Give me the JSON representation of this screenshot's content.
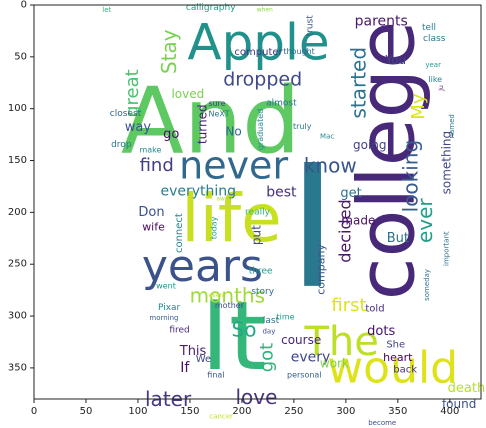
{
  "chart_data": {
    "type": "wordcloud",
    "xlim": [
      0,
      430
    ],
    "ylim": [
      380,
      0
    ],
    "x_ticks": [
      0,
      50,
      100,
      150,
      200,
      250,
      300,
      350,
      400
    ],
    "y_ticks": [
      0,
      50,
      100,
      150,
      200,
      250,
      300,
      350
    ],
    "colormap": "viridis",
    "words": [
      {
        "text": "And",
        "x": 170,
        "y": 112,
        "size": 92,
        "color": "#5ec962",
        "rot": 0
      },
      {
        "text": "I",
        "x": 268,
        "y": 215,
        "size": 170,
        "color": "#2a788e",
        "rot": 0
      },
      {
        "text": "It",
        "x": 192,
        "y": 320,
        "size": 95,
        "color": "#35b779",
        "rot": 0
      },
      {
        "text": "college",
        "x": 340,
        "y": 150,
        "size": 78,
        "color": "#482878",
        "rot": -90
      },
      {
        "text": "Apple",
        "x": 216,
        "y": 36,
        "size": 50,
        "color": "#21918c",
        "rot": 0
      },
      {
        "text": "life",
        "x": 190,
        "y": 206,
        "size": 66,
        "color": "#c8e020",
        "rot": 0
      },
      {
        "text": "never",
        "x": 192,
        "y": 155,
        "size": 38,
        "color": "#31688e",
        "rot": 0
      },
      {
        "text": "years",
        "x": 162,
        "y": 252,
        "size": 44,
        "color": "#3b528b",
        "rot": 0
      },
      {
        "text": "would",
        "x": 345,
        "y": 350,
        "size": 44,
        "color": "#dde318",
        "rot": 0
      },
      {
        "text": "The",
        "x": 296,
        "y": 325,
        "size": 40,
        "color": "#bddf26",
        "rot": 0
      },
      {
        "text": "dropped",
        "x": 220,
        "y": 72,
        "size": 19,
        "color": "#3e4989",
        "rot": 0
      },
      {
        "text": "months",
        "x": 186,
        "y": 280,
        "size": 20,
        "color": "#a0da39",
        "rot": 0
      },
      {
        "text": "later",
        "x": 129,
        "y": 380,
        "size": 20,
        "color": "#443983",
        "rot": 0
      },
      {
        "text": "love",
        "x": 214,
        "y": 378,
        "size": 20,
        "color": "#46337e",
        "rot": 0
      },
      {
        "text": "know",
        "x": 285,
        "y": 155,
        "size": 20,
        "color": "#39568c",
        "rot": 0
      },
      {
        "text": "find",
        "x": 118,
        "y": 155,
        "size": 18,
        "color": "#433e85",
        "rot": 0
      },
      {
        "text": "Stay",
        "x": 130,
        "y": 45,
        "size": 20,
        "color": "#7ad151",
        "rot": -90
      },
      {
        "text": "great",
        "x": 95,
        "y": 85,
        "size": 18,
        "color": "#4ac16d",
        "rot": -90
      },
      {
        "text": "started",
        "x": 312,
        "y": 75,
        "size": 20,
        "color": "#2c728e",
        "rot": -90
      },
      {
        "text": "My",
        "x": 370,
        "y": 98,
        "size": 18,
        "color": "#dde318",
        "rot": -90
      },
      {
        "text": "looking",
        "x": 362,
        "y": 165,
        "size": 20,
        "color": "#365c8d",
        "rot": -90
      },
      {
        "text": "ever",
        "x": 376,
        "y": 208,
        "size": 20,
        "color": "#1fa088",
        "rot": -90
      },
      {
        "text": "something",
        "x": 397,
        "y": 152,
        "size": 12,
        "color": "#3f4788",
        "rot": -90
      },
      {
        "text": "decided",
        "x": 299,
        "y": 218,
        "size": 16,
        "color": "#48186a",
        "rot": -90
      },
      {
        "text": "first",
        "x": 303,
        "y": 290,
        "size": 18,
        "color": "#dde318",
        "rot": 0
      },
      {
        "text": "So",
        "x": 202,
        "y": 313,
        "size": 20,
        "color": "#22a884",
        "rot": 0
      },
      {
        "text": "got",
        "x": 224,
        "y": 340,
        "size": 18,
        "color": "#2fb47c",
        "rot": -90
      },
      {
        "text": "every",
        "x": 266,
        "y": 340,
        "size": 14,
        "color": "#404688",
        "rot": 0
      },
      {
        "text": "course",
        "x": 257,
        "y": 323,
        "size": 12,
        "color": "#482576",
        "rot": 0
      },
      {
        "text": "work",
        "x": 289,
        "y": 346,
        "size": 12,
        "color": "#7fd34e",
        "rot": 0
      },
      {
        "text": "dots",
        "x": 334,
        "y": 315,
        "size": 13,
        "color": "#471164",
        "rot": 0
      },
      {
        "text": "heart",
        "x": 350,
        "y": 340,
        "size": 11,
        "color": "#440154",
        "rot": 0
      },
      {
        "text": "She",
        "x": 348,
        "y": 328,
        "size": 10,
        "color": "#414487",
        "rot": 0
      },
      {
        "text": "back",
        "x": 357,
        "y": 352,
        "size": 10,
        "color": "#46327e",
        "rot": 0
      },
      {
        "text": "death",
        "x": 416,
        "y": 370,
        "size": 13,
        "color": "#b5de2b",
        "rot": 0
      },
      {
        "text": "found",
        "x": 409,
        "y": 385,
        "size": 12,
        "color": "#3b528b",
        "rot": 0
      },
      {
        "text": "told",
        "x": 328,
        "y": 293,
        "size": 10,
        "color": "#472c7a",
        "rot": 0
      },
      {
        "text": "going",
        "x": 323,
        "y": 135,
        "size": 12,
        "color": "#424186",
        "rot": 0
      },
      {
        "text": "get",
        "x": 305,
        "y": 182,
        "size": 13,
        "color": "#2c728e",
        "rot": 0
      },
      {
        "text": "made",
        "x": 312,
        "y": 208,
        "size": 12,
        "color": "#470d60",
        "rot": 0
      },
      {
        "text": "But",
        "x": 350,
        "y": 225,
        "size": 13,
        "color": "#2d708e",
        "rot": 0
      },
      {
        "text": "company",
        "x": 276,
        "y": 255,
        "size": 11,
        "color": "#3a548c",
        "rot": -90
      },
      {
        "text": "loved",
        "x": 148,
        "y": 86,
        "size": 12,
        "color": "#7ad151",
        "rot": 0
      },
      {
        "text": "way",
        "x": 100,
        "y": 118,
        "size": 13,
        "color": "#3b528b",
        "rot": 0
      },
      {
        "text": "go",
        "x": 132,
        "y": 125,
        "size": 13,
        "color": "#471063",
        "rot": 0
      },
      {
        "text": "turned",
        "x": 162,
        "y": 115,
        "size": 12,
        "color": "#482172",
        "rot": -90
      },
      {
        "text": "No",
        "x": 192,
        "y": 122,
        "size": 12,
        "color": "#31688e",
        "rot": 0
      },
      {
        "text": "everything",
        "x": 158,
        "y": 180,
        "size": 14,
        "color": "#297b8e",
        "rot": 0
      },
      {
        "text": "best",
        "x": 238,
        "y": 181,
        "size": 14,
        "color": "#46307e",
        "rot": 0
      },
      {
        "text": "Don",
        "x": 113,
        "y": 200,
        "size": 13,
        "color": "#3b528b",
        "rot": 0
      },
      {
        "text": "wife",
        "x": 115,
        "y": 214,
        "size": 11,
        "color": "#460a5d",
        "rot": 0
      },
      {
        "text": "connect",
        "x": 140,
        "y": 220,
        "size": 10,
        "color": "#25838e",
        "rot": -90
      },
      {
        "text": "put",
        "x": 214,
        "y": 222,
        "size": 12,
        "color": "#3e4989",
        "rot": -90
      },
      {
        "text": "This",
        "x": 153,
        "y": 334,
        "size": 13,
        "color": "#481f70",
        "rot": 0
      },
      {
        "text": "If",
        "x": 145,
        "y": 350,
        "size": 14,
        "color": "#471365",
        "rot": 0
      },
      {
        "text": "parents",
        "x": 334,
        "y": 16,
        "size": 14,
        "color": "#481b6d",
        "rot": 0
      },
      {
        "text": "You",
        "x": 348,
        "y": 53,
        "size": 12,
        "color": "#414487",
        "rot": 0
      },
      {
        "text": "computer",
        "x": 216,
        "y": 46,
        "size": 10,
        "color": "#453781",
        "rot": 0
      },
      {
        "text": "tell",
        "x": 380,
        "y": 22,
        "size": 9,
        "color": "#287d8e",
        "rot": 0
      },
      {
        "text": "class",
        "x": 385,
        "y": 33,
        "size": 9,
        "color": "#297a8e",
        "rot": 0
      },
      {
        "text": "calligraphy",
        "x": 170,
        "y": 3,
        "size": 9,
        "color": "#1fa088",
        "rot": 0
      },
      {
        "text": "trust",
        "x": 266,
        "y": 20,
        "size": 9,
        "color": "#3b528b",
        "rot": -90
      },
      {
        "text": "thought",
        "x": 255,
        "y": 45,
        "size": 8,
        "color": "#31688e",
        "rot": 0
      },
      {
        "text": "almost",
        "x": 238,
        "y": 95,
        "size": 9,
        "color": "#2c728e",
        "rot": 0
      },
      {
        "text": "sure",
        "x": 176,
        "y": 95,
        "size": 8,
        "color": "#414487",
        "rot": 0
      },
      {
        "text": "closest",
        "x": 88,
        "y": 105,
        "size": 9,
        "color": "#32648e",
        "rot": 0
      },
      {
        "text": "drop",
        "x": 84,
        "y": 135,
        "size": 9,
        "color": "#29798e",
        "rot": 0
      },
      {
        "text": "make",
        "x": 112,
        "y": 140,
        "size": 8,
        "color": "#24878e",
        "rot": 0
      },
      {
        "text": "graduated",
        "x": 218,
        "y": 120,
        "size": 8,
        "color": "#23898e",
        "rot": -90
      },
      {
        "text": "truly",
        "x": 258,
        "y": 117,
        "size": 8,
        "color": "#2a768e",
        "rot": 0
      },
      {
        "text": "Mac",
        "x": 282,
        "y": 127,
        "size": 7,
        "color": "#238a8d",
        "rot": 0
      },
      {
        "text": "NeXT",
        "x": 178,
        "y": 105,
        "size": 8,
        "color": "#2a778e",
        "rot": 0
      },
      {
        "text": "named",
        "x": 402,
        "y": 117,
        "size": 7,
        "color": "#2a768e",
        "rot": -90
      },
      {
        "text": "like",
        "x": 386,
        "y": 72,
        "size": 8,
        "color": "#24868e",
        "rot": 0
      },
      {
        "text": "year",
        "x": 384,
        "y": 58,
        "size": 7,
        "color": "#1fa188",
        "rot": 0
      },
      {
        "text": "really",
        "x": 215,
        "y": 200,
        "size": 9,
        "color": "#2fb47c",
        "rot": 0
      },
      {
        "text": "today",
        "x": 173,
        "y": 215,
        "size": 8,
        "color": "#1fa188",
        "rot": -90
      },
      {
        "text": "three",
        "x": 218,
        "y": 257,
        "size": 9,
        "color": "#1f978b",
        "rot": 0
      },
      {
        "text": "story",
        "x": 220,
        "y": 277,
        "size": 9,
        "color": "#2d708e",
        "rot": 0
      },
      {
        "text": "mother",
        "x": 188,
        "y": 290,
        "size": 8,
        "color": "#3d4d8a",
        "rot": 0
      },
      {
        "text": "Pixar",
        "x": 130,
        "y": 292,
        "size": 9,
        "color": "#24868e",
        "rot": 0
      },
      {
        "text": "went",
        "x": 127,
        "y": 271,
        "size": 8,
        "color": "#21918c",
        "rot": 0
      },
      {
        "text": "morning",
        "x": 125,
        "y": 302,
        "size": 7,
        "color": "#375a8c",
        "rot": 0
      },
      {
        "text": "fired",
        "x": 140,
        "y": 314,
        "size": 9,
        "color": "#472a7a",
        "rot": 0
      },
      {
        "text": "last",
        "x": 228,
        "y": 305,
        "size": 9,
        "color": "#2c718e",
        "rot": 0
      },
      {
        "text": "day",
        "x": 226,
        "y": 315,
        "size": 7,
        "color": "#3e4c8a",
        "rot": 0
      },
      {
        "text": "time",
        "x": 242,
        "y": 301,
        "size": 8,
        "color": "#1e9b8a",
        "rot": 0
      },
      {
        "text": "We",
        "x": 163,
        "y": 342,
        "size": 10,
        "color": "#3f4889",
        "rot": 0
      },
      {
        "text": "final",
        "x": 175,
        "y": 357,
        "size": 8,
        "color": "#3a548c",
        "rot": 0
      },
      {
        "text": "personal",
        "x": 260,
        "y": 357,
        "size": 8,
        "color": "#32648e",
        "rot": 0
      },
      {
        "text": "cancer",
        "x": 180,
        "y": 397,
        "size": 7,
        "color": "#c8e020",
        "rot": 0
      },
      {
        "text": "become",
        "x": 335,
        "y": 403,
        "size": 7,
        "color": "#3d4e8a",
        "rot": 0
      },
      {
        "text": "someday",
        "x": 378,
        "y": 270,
        "size": 7,
        "color": "#2b758e",
        "rot": -90
      },
      {
        "text": "important",
        "x": 397,
        "y": 235,
        "size": 7,
        "color": "#2e6d8e",
        "rot": -90
      },
      {
        "text": "let",
        "x": 70,
        "y": 5,
        "size": 7,
        "color": "#2fb47c",
        "rot": 0
      },
      {
        "text": "when",
        "x": 222,
        "y": 5,
        "size": 6,
        "color": "#8fd744",
        "rot": 0
      },
      {
        "text": "away",
        "x": 183,
        "y": 187,
        "size": 6,
        "color": "#b5de2b",
        "rot": 0
      },
      {
        "text": "even",
        "x": 175,
        "y": 280,
        "size": 6,
        "color": "#c8e020",
        "rot": 0
      },
      {
        "text": "Ju",
        "x": 392,
        "y": 80,
        "size": 6,
        "color": "#471063",
        "rot": -90
      }
    ]
  }
}
